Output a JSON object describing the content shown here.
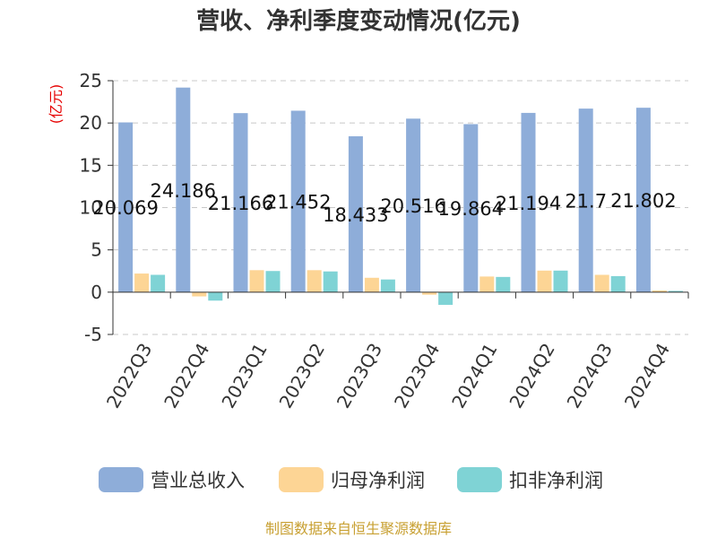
{
  "source": "制图数据来自恒生聚源数据库",
  "chart_data": {
    "type": "bar",
    "title": "营收、净利季度变动情况(亿元)",
    "ylabel": "(亿元)",
    "xlabel": "",
    "ylim": [
      -5,
      25
    ],
    "yticks": [
      "25",
      "20",
      "15",
      "10",
      "5",
      "0",
      "-5"
    ],
    "grid": true,
    "legend_position": "bottom",
    "categories": [
      "2022Q3",
      "2022Q4",
      "2023Q1",
      "2023Q2",
      "2023Q3",
      "2023Q4",
      "2024Q1",
      "2024Q2",
      "2024Q3",
      "2024Q4"
    ],
    "series": [
      {
        "name": "营业总收入",
        "color": "#8eadd9",
        "values": [
          20.069,
          24.186,
          21.166,
          21.452,
          18.433,
          20.516,
          19.864,
          21.194,
          21.7,
          21.802
        ],
        "labels": [
          "20.069",
          "24.186",
          "21.166",
          "21.452",
          "18.433",
          "20.516",
          "19.864",
          "21.194",
          "21.7",
          "21.802"
        ]
      },
      {
        "name": "归母净利润",
        "color": "#fdd595",
        "values": [
          2.2,
          -0.5,
          2.6,
          2.6,
          1.7,
          -0.3,
          1.85,
          2.55,
          2.05,
          0.2
        ]
      },
      {
        "name": "扣非净利润",
        "color": "#7fd3d5",
        "values": [
          2.05,
          -1.0,
          2.5,
          2.45,
          1.5,
          -1.5,
          1.8,
          2.55,
          1.9,
          0.15
        ]
      }
    ]
  }
}
